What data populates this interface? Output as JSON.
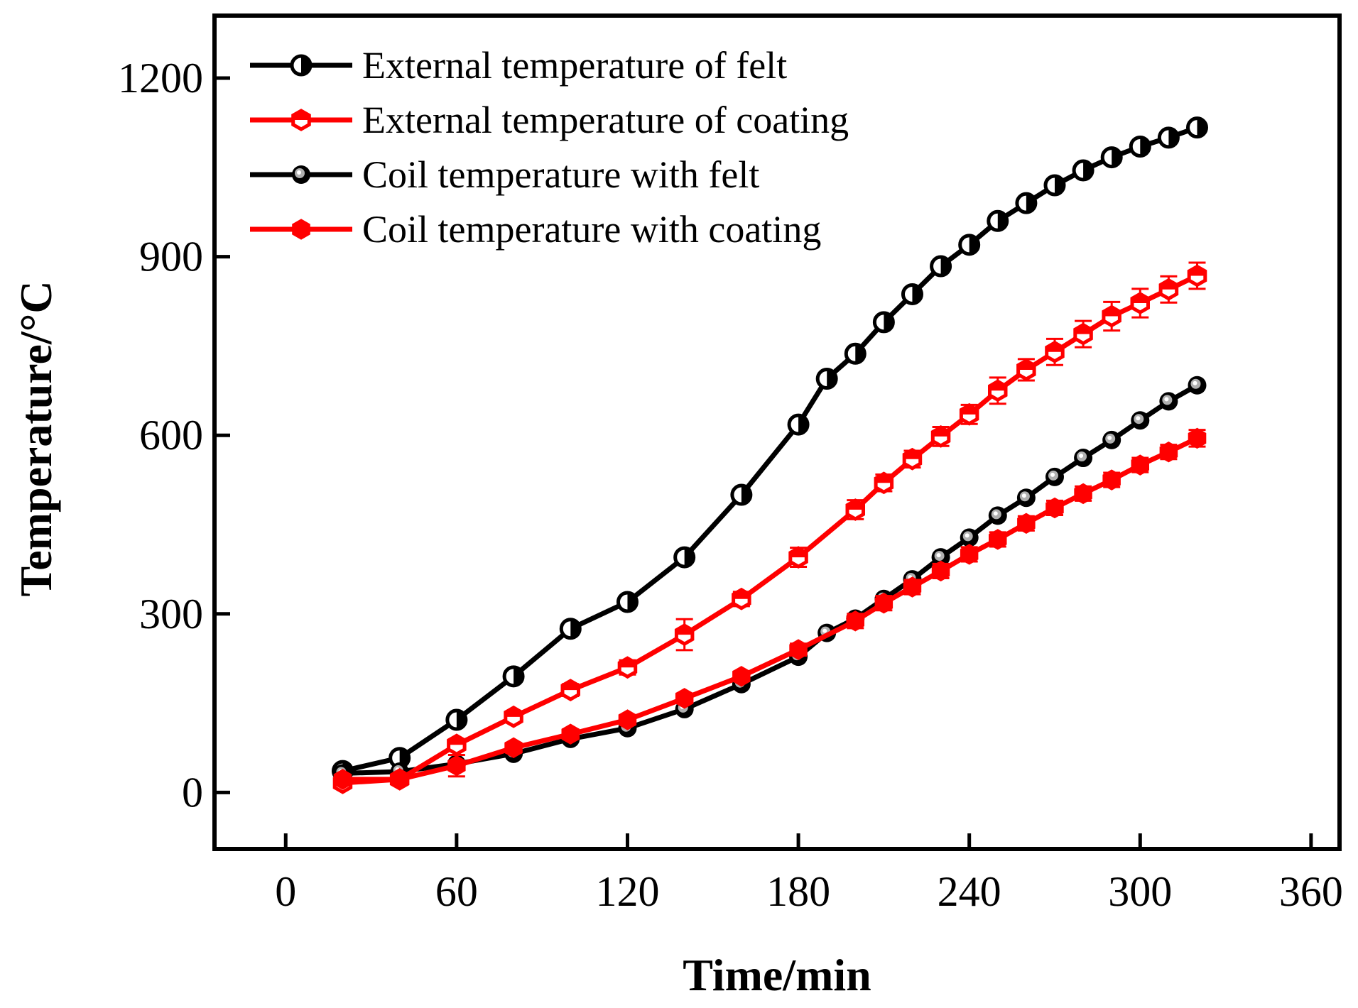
{
  "chart_data": {
    "type": "line",
    "title": "",
    "xlabel": "Time/min",
    "ylabel": "Temperature/°C",
    "xlim": [
      -25,
      370
    ],
    "ylim": [
      -95,
      1305
    ],
    "xticks": [
      0,
      60,
      120,
      180,
      240,
      300,
      360
    ],
    "xtick_labels": [
      "0",
      "60",
      "120",
      "180",
      "240",
      "300",
      "360"
    ],
    "yticks": [
      0,
      300,
      600,
      900,
      1200
    ],
    "ytick_labels": [
      "0",
      "300",
      "600",
      "900",
      "1200"
    ],
    "legend_position": "top-left",
    "series": [
      {
        "name": "External temperature of felt",
        "color": "#000000",
        "marker": "half-filled-circle",
        "x": [
          20,
          40,
          60,
          80,
          100,
          120,
          140,
          160,
          180,
          190,
          200,
          210,
          220,
          230,
          240,
          250,
          260,
          270,
          280,
          290,
          300,
          310,
          320
        ],
        "y": [
          36,
          58,
          122,
          195,
          275,
          320,
          395,
          500,
          618,
          695,
          737,
          790,
          837,
          884,
          920,
          960,
          990,
          1020,
          1045,
          1067,
          1085,
          1100,
          1117
        ],
        "err": [
          0,
          0,
          0,
          0,
          0,
          0,
          0,
          0,
          0,
          0,
          0,
          0,
          0,
          0,
          0,
          0,
          0,
          0,
          0,
          0,
          0,
          0,
          0
        ]
      },
      {
        "name": "External temperature of coating",
        "color": "#ff0000",
        "marker": "half-filled-hexagon",
        "x": [
          20,
          40,
          60,
          80,
          100,
          120,
          140,
          160,
          180,
          200,
          210,
          220,
          230,
          240,
          250,
          260,
          270,
          280,
          290,
          300,
          310,
          320
        ],
        "y": [
          16,
          22,
          80,
          127,
          172,
          210,
          265,
          325,
          395,
          475,
          520,
          560,
          598,
          635,
          675,
          710,
          740,
          770,
          800,
          822,
          845,
          868
        ],
        "err": [
          6,
          6,
          8,
          8,
          10,
          12,
          26,
          12,
          16,
          16,
          14,
          14,
          16,
          16,
          22,
          18,
          22,
          22,
          24,
          24,
          22,
          22
        ]
      },
      {
        "name": "Coil temperature with felt",
        "color": "#000000",
        "marker": "gray-center-circle",
        "x": [
          20,
          40,
          60,
          80,
          100,
          120,
          140,
          160,
          180,
          190,
          200,
          210,
          220,
          230,
          240,
          250,
          260,
          270,
          280,
          290,
          300,
          310,
          320
        ],
        "y": [
          32,
          35,
          48,
          65,
          90,
          108,
          140,
          182,
          228,
          268,
          292,
          325,
          358,
          395,
          428,
          465,
          495,
          530,
          562,
          592,
          625,
          657,
          684
        ],
        "err": [
          0,
          0,
          0,
          0,
          0,
          0,
          0,
          0,
          0,
          0,
          0,
          0,
          0,
          0,
          0,
          0,
          0,
          0,
          0,
          0,
          0,
          0,
          0
        ]
      },
      {
        "name": "Coil temperature with coating",
        "color": "#ff0000",
        "marker": "filled-hexagon",
        "x": [
          20,
          40,
          60,
          80,
          100,
          120,
          140,
          160,
          180,
          200,
          210,
          220,
          230,
          240,
          250,
          260,
          270,
          280,
          290,
          300,
          310,
          320
        ],
        "y": [
          22,
          22,
          45,
          75,
          98,
          122,
          158,
          195,
          240,
          288,
          318,
          345,
          372,
          400,
          425,
          452,
          478,
          502,
          525,
          550,
          572,
          595
        ],
        "err": [
          4,
          4,
          18,
          8,
          8,
          8,
          8,
          8,
          10,
          12,
          12,
          12,
          12,
          12,
          12,
          12,
          12,
          12,
          12,
          12,
          12,
          14
        ]
      }
    ]
  }
}
